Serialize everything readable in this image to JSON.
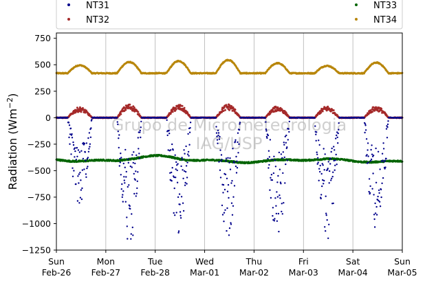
{
  "chart_data": {
    "type": "scatter",
    "title": "",
    "ylabel": "Radiation (Wm",
    "ylabel_exponent": "−2",
    "ylabel_close": ")",
    "xlabel": "",
    "ylim": [
      -1250,
      800
    ],
    "yticks": [
      {
        "value": 750,
        "label": "750"
      },
      {
        "value": 500,
        "label": "500"
      },
      {
        "value": 250,
        "label": "250"
      },
      {
        "value": 0,
        "label": "0"
      },
      {
        "value": -250,
        "label": "−250"
      },
      {
        "value": -500,
        "label": "−500"
      },
      {
        "value": -750,
        "label": "−750"
      },
      {
        "value": -1000,
        "label": "−1000"
      },
      {
        "value": -1250,
        "label": "−1250"
      }
    ],
    "xticks": [
      {
        "day": 0,
        "line1": "Sun",
        "line2": "Feb-26"
      },
      {
        "day": 1,
        "line1": "Mon",
        "line2": "Feb-27"
      },
      {
        "day": 2,
        "line1": "Tue",
        "line2": "Feb-28"
      },
      {
        "day": 3,
        "line1": "Wed",
        "line2": "Mar-01"
      },
      {
        "day": 4,
        "line1": "Thu",
        "line2": "Mar-02"
      },
      {
        "day": 5,
        "line1": "Fri",
        "line2": "Mar-03"
      },
      {
        "day": 6,
        "line1": "Sat",
        "line2": "Mar-04"
      },
      {
        "day": 7,
        "line1": "Sun",
        "line2": "Mar-05"
      }
    ],
    "grid": "vertical",
    "legend": {
      "placement": "top",
      "columns": 2
    },
    "watermark": [
      "Grupo de Micrometeorologia",
      "IAG/USP"
    ],
    "series": [
      {
        "name": "NT31",
        "color": "#00008b",
        "description": "net longwave-like series, near 0 at night, deep negative scatter during daytime",
        "daily_min": [
          -820,
          -1220,
          -1110,
          -1150,
          -1130,
          -1200,
          -1090
        ]
      },
      {
        "name": "NT32",
        "color": "#a52a2a",
        "baseline": 0,
        "daily_peak": [
          100,
          130,
          125,
          130,
          110,
          110,
          110
        ]
      },
      {
        "name": "NT33",
        "color": "#006400",
        "baseline_start": -395,
        "range": [
          -440,
          -360
        ]
      },
      {
        "name": "NT34",
        "color": "#b8860b",
        "night_level": 420,
        "daily_peak": [
          495,
          525,
          535,
          545,
          515,
          490,
          520
        ]
      }
    ]
  }
}
